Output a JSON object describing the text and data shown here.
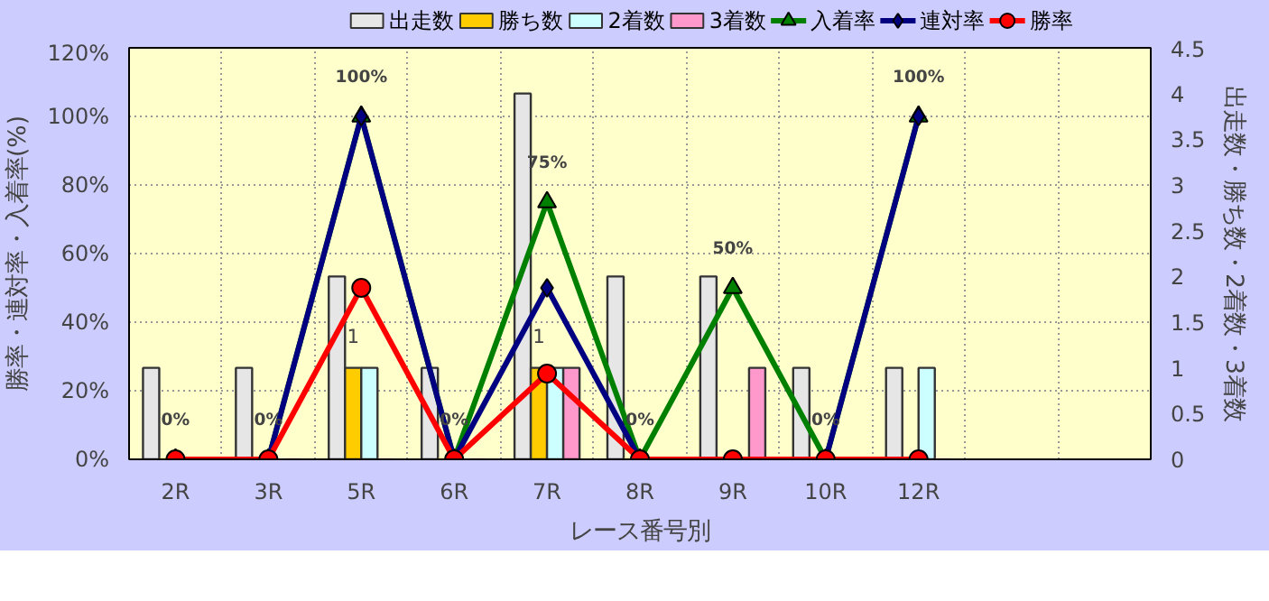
{
  "chart_data": {
    "type": "bar",
    "categories": [
      "2R",
      "3R",
      "5R",
      "6R",
      "7R",
      "8R",
      "9R",
      "10R",
      "12R",
      null,
      null
    ],
    "xlabel": "レース番号別",
    "ylabel": "勝率・連対率・入着率(%)",
    "y2label": "出走数・勝ち数・2着数・3着数",
    "ylim": [
      0,
      120
    ],
    "yticks": [
      {
        "value": 0,
        "label": "0%"
      },
      {
        "value": 20,
        "label": "20%"
      },
      {
        "value": 40,
        "label": "40%"
      },
      {
        "value": 60,
        "label": "60%"
      },
      {
        "value": 80,
        "label": "80%"
      },
      {
        "value": 100,
        "label": "100%"
      },
      {
        "value": 120,
        "label": "120%"
      }
    ],
    "y2lim": [
      0,
      4.5
    ],
    "y2ticks": [
      0,
      0.5,
      1,
      1.5,
      2,
      2.5,
      3,
      3.5,
      4,
      4.5
    ],
    "grid": true,
    "legend": "top",
    "series": [
      {
        "name": "出走数",
        "axis": "y2",
        "color": "#e6e6e6",
        "values": [
          1,
          1,
          2,
          1,
          4,
          2,
          2,
          1,
          1,
          null,
          null
        ]
      },
      {
        "name": "勝ち数",
        "axis": "y2",
        "color": "#ffcc00",
        "values": [
          0,
          0,
          1,
          0,
          1,
          0,
          0,
          0,
          0,
          null,
          null
        ],
        "value_labels": [
          null,
          null,
          "1",
          null,
          "1",
          null,
          null,
          null,
          null,
          null,
          null
        ]
      },
      {
        "name": "2着数",
        "axis": "y2",
        "color": "#ccffff",
        "values": [
          0,
          0,
          1,
          0,
          1,
          0,
          0,
          0,
          1,
          null,
          null
        ]
      },
      {
        "name": "3着数",
        "axis": "y2",
        "color": "#ff99cc",
        "values": [
          0,
          0,
          0,
          0,
          1,
          0,
          1,
          0,
          0,
          null,
          null
        ]
      },
      {
        "name": "入着率",
        "type": "line",
        "axis": "y",
        "color": "#008000",
        "marker": "triangle",
        "values": [
          0,
          0,
          100,
          0,
          75,
          0,
          50,
          0,
          100,
          null,
          null
        ],
        "value_labels": [
          "0%",
          "0%",
          "100%",
          "0%",
          "75%",
          "0%",
          "50%",
          "0%",
          "100%",
          null,
          null
        ]
      },
      {
        "name": "連対率",
        "type": "line",
        "axis": "y",
        "color": "#000080",
        "marker": "diamond",
        "values": [
          0,
          0,
          100,
          0,
          50,
          0,
          0,
          0,
          100,
          null,
          null
        ]
      },
      {
        "name": "勝率",
        "type": "line",
        "axis": "y",
        "color": "#ff0000",
        "marker": "circle",
        "values": [
          0,
          0,
          50,
          0,
          25,
          0,
          0,
          0,
          0,
          null,
          null
        ]
      }
    ]
  }
}
